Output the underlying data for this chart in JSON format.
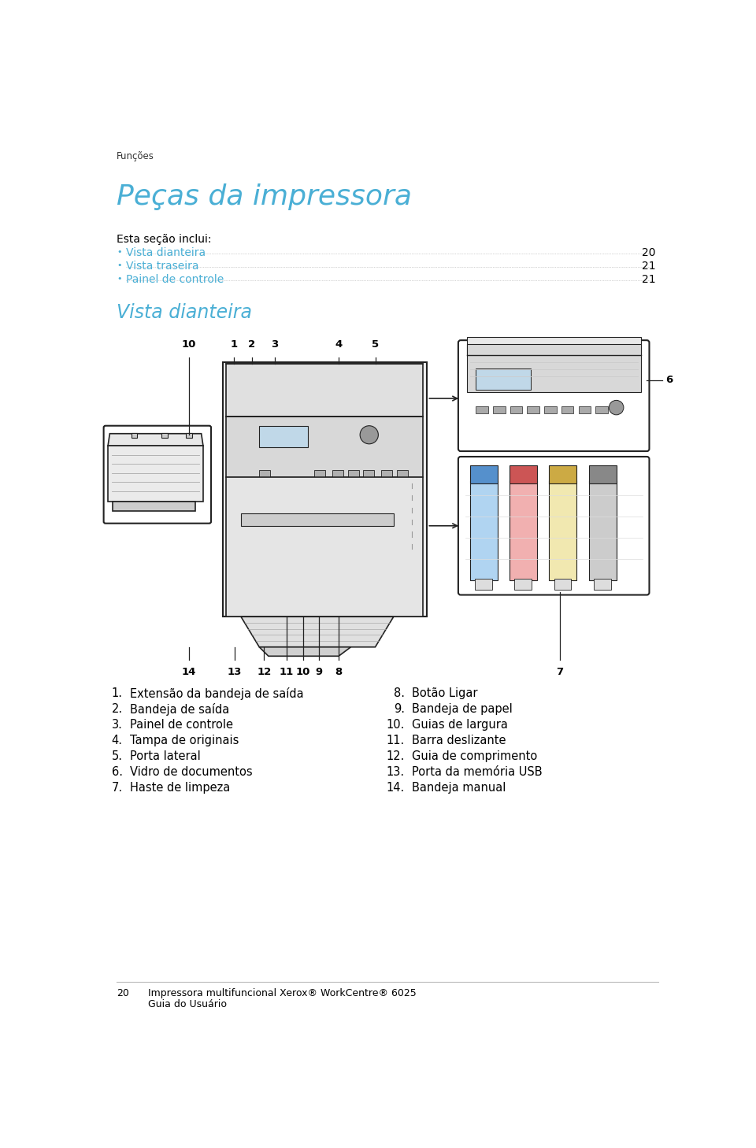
{
  "page_header": "Funções",
  "main_title": "Peças da impressora",
  "section_intro": "Esta seção inclui:",
  "toc_items": [
    {
      "text": "Vista dianteira",
      "page": "20"
    },
    {
      "text": "Vista traseira",
      "page": "21"
    },
    {
      "text": "Painel de controle",
      "page": "21"
    }
  ],
  "section_title": "Vista dianteira",
  "items_left": [
    {
      "num": "1.",
      "text": "Extensão da bandeja de saída"
    },
    {
      "num": "2.",
      "text": "Bandeja de saída"
    },
    {
      "num": "3.",
      "text": "Painel de controle"
    },
    {
      "num": "4.",
      "text": "Tampa de originais"
    },
    {
      "num": "5.",
      "text": "Porta lateral"
    },
    {
      "num": "6.",
      "text": "Vidro de documentos"
    },
    {
      "num": "7.",
      "text": "Haste de limpeza"
    }
  ],
  "items_right": [
    {
      "num": "8.",
      "text": "Botão Ligar"
    },
    {
      "num": "9.",
      "text": "Bandeja de papel"
    },
    {
      "num": "10.",
      "text": "Guias de largura"
    },
    {
      "num": "11.",
      "text": "Barra deslizante"
    },
    {
      "num": "12.",
      "text": "Guia de comprimento"
    },
    {
      "num": "13.",
      "text": "Porta da memória USB"
    },
    {
      "num": "14.",
      "text": "Bandeja manual"
    }
  ],
  "footer_num": "20",
  "footer_line1": "Impressora multifuncional Xerox® WorkCentre® 6025",
  "footer_line2": "Guia do Usuário",
  "title_color": "#4aafd5",
  "toc_link_color": "#4aafd5",
  "body_color": "#000000",
  "header_color": "#000000",
  "bg_color": "#ffffff"
}
